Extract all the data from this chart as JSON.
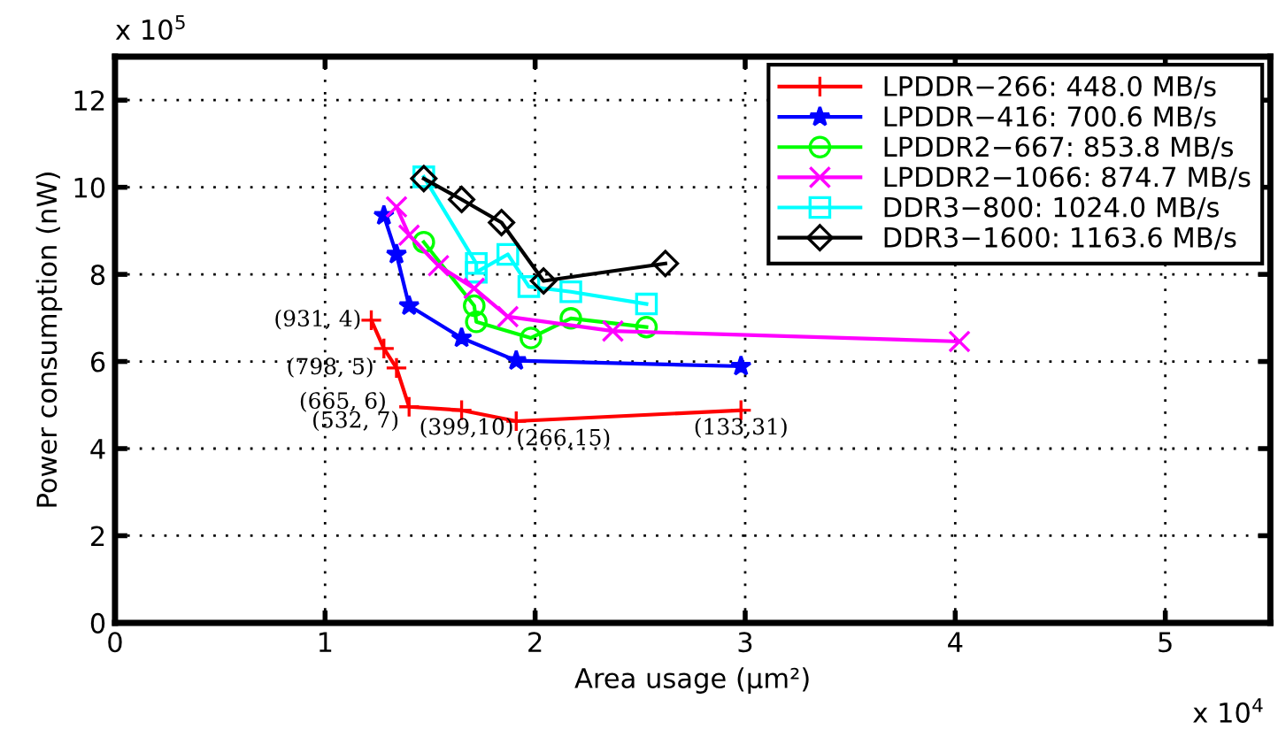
{
  "chart_data": {
    "type": "line",
    "xlabel": "Area usage (μm²)",
    "ylabel": "Power consumption (nW)",
    "xlim": [
      0,
      5.5
    ],
    "xticks": [
      0,
      1,
      2,
      3,
      4,
      5
    ],
    "ylim": [
      0,
      13
    ],
    "yticks": [
      0,
      2,
      4,
      6,
      8,
      10,
      12
    ],
    "grid": true,
    "legend": "top right",
    "line_style": "solid",
    "series": [
      {
        "name": "LPDDR−266: 448.0 MB/s",
        "color": "#ff0000",
        "marker": "plus",
        "x": [
          1.22,
          1.28,
          1.34,
          1.4,
          1.65,
          1.91,
          2.98
        ],
        "values": [
          6.95,
          6.3,
          5.85,
          4.96,
          4.88,
          4.63,
          4.88
        ]
      },
      {
        "name": "LPDDR−416: 700.6 MB/s",
        "color": "#0000ff",
        "marker": "star",
        "x": [
          1.28,
          1.34,
          1.4,
          1.65,
          1.91,
          2.98
        ],
        "values": [
          9.35,
          8.46,
          7.28,
          6.54,
          6.02,
          5.89
        ]
      },
      {
        "name": "LPDDR2−667: 853.8 MB/s",
        "color": "#00ff00",
        "marker": "circle",
        "x": [
          1.47,
          1.71,
          1.72,
          1.98,
          2.17,
          2.53
        ],
        "values": [
          8.74,
          7.28,
          6.91,
          6.54,
          6.99,
          6.79
        ]
      },
      {
        "name": "LPDDR2−1066: 874.7 MB/s",
        "color": "#ff00ff",
        "marker": "cross",
        "x": [
          1.34,
          1.4,
          1.54,
          1.71,
          1.87,
          2.37,
          4.02
        ],
        "values": [
          9.55,
          8.9,
          8.2,
          7.68,
          7.03,
          6.7,
          6.46
        ]
      },
      {
        "name": "DDR3−800: 1024.0 MB/s",
        "color": "#00ffff",
        "marker": "square",
        "x": [
          1.47,
          1.72,
          1.72,
          1.87,
          1.97,
          2.17,
          2.53
        ],
        "values": [
          10.24,
          8.25,
          8.05,
          8.46,
          7.72,
          7.6,
          7.32
        ]
      },
      {
        "name": "DDR3−1600: 1163.6 MB/s",
        "color": "#000000",
        "marker": "diamond",
        "x": [
          1.47,
          1.65,
          1.84,
          2.04,
          2.62
        ],
        "values": [
          10.2,
          9.72,
          9.19,
          7.85,
          8.25
        ]
      }
    ],
    "annotations": [
      "x 10$^{5}$",
      "x 10$^{4}$",
      {
        "text": "(931, 4)",
        "x": 1.22,
        "y": 6.95
      },
      {
        "text": "(798, 5)",
        "x": 1.28,
        "y": 6.3
      },
      {
        "text": "(665, 6)",
        "x": 1.34,
        "y": 5.85
      },
      {
        "text": "(532, 7)",
        "x": 1.4,
        "y": 4.96
      },
      {
        "text": "(399,10)",
        "x": 1.65,
        "y": 4.88
      },
      {
        "text": "(266,15)",
        "x": 1.91,
        "y": 4.63
      },
      {
        "text": "(133,31)",
        "x": 2.98,
        "y": 4.88
      }
    ]
  }
}
